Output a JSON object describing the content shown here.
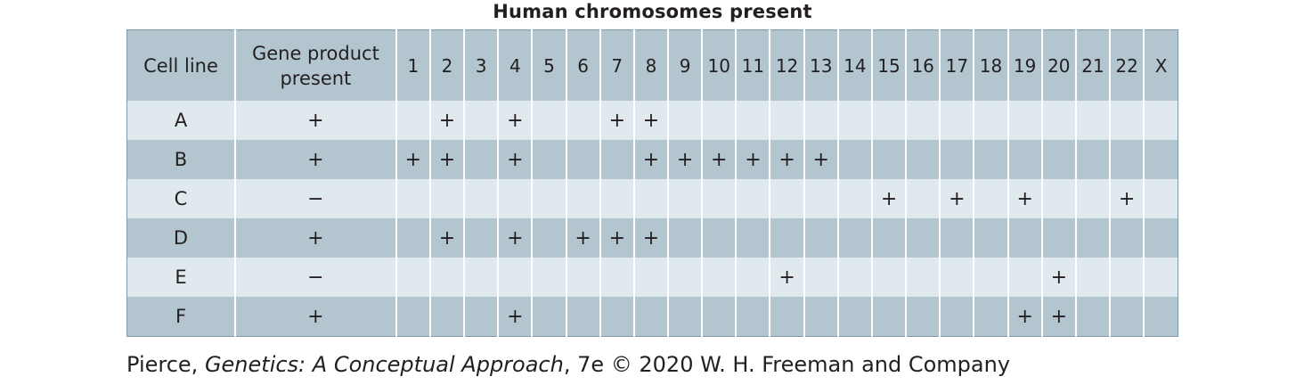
{
  "title": "Human chromosomes present",
  "table": {
    "header_cell_line": "Cell line",
    "header_gene_product": "Gene product present",
    "chromosomes": [
      "1",
      "2",
      "3",
      "4",
      "5",
      "6",
      "7",
      "8",
      "9",
      "10",
      "11",
      "12",
      "13",
      "14",
      "15",
      "16",
      "17",
      "18",
      "19",
      "20",
      "21",
      "22",
      "X"
    ],
    "rows": [
      {
        "cell_line": "A",
        "gene_product": "+",
        "marks": [
          "",
          "+",
          "",
          "+",
          "",
          "",
          "+",
          "+",
          "",
          "",
          "",
          "",
          "",
          "",
          "",
          "",
          "",
          "",
          "",
          "",
          "",
          "",
          ""
        ]
      },
      {
        "cell_line": "B",
        "gene_product": "+",
        "marks": [
          "+",
          "+",
          "",
          "+",
          "",
          "",
          "",
          "+",
          "+",
          "+",
          "+",
          "+",
          "+",
          "",
          "",
          "",
          "",
          "",
          "",
          "",
          "",
          "",
          ""
        ]
      },
      {
        "cell_line": "C",
        "gene_product": "−",
        "marks": [
          "",
          "",
          "",
          "",
          "",
          "",
          "",
          "",
          "",
          "",
          "",
          "",
          "",
          "",
          "+",
          "",
          "+",
          "",
          "+",
          "",
          "",
          "+",
          ""
        ]
      },
      {
        "cell_line": "D",
        "gene_product": "+",
        "marks": [
          "",
          "+",
          "",
          "+",
          "",
          "+",
          "+",
          "+",
          "",
          "",
          "",
          "",
          "",
          "",
          "",
          "",
          "",
          "",
          "",
          "",
          "",
          "",
          ""
        ]
      },
      {
        "cell_line": "E",
        "gene_product": "−",
        "marks": [
          "",
          "",
          "",
          "",
          "",
          "",
          "",
          "",
          "",
          "",
          "",
          "+",
          "",
          "",
          "",
          "",
          "",
          "",
          "",
          "+",
          "",
          "",
          ""
        ]
      },
      {
        "cell_line": "F",
        "gene_product": "+",
        "marks": [
          "",
          "",
          "",
          "+",
          "",
          "",
          "",
          "",
          "",
          "",
          "",
          "",
          "",
          "",
          "",
          "",
          "",
          "",
          "+",
          "+",
          "",
          "",
          ""
        ]
      }
    ]
  },
  "credit": {
    "author": "Pierce, ",
    "book": "Genetics: A Conceptual Approach",
    "rest": ", 7e © 2020 W. H. Freeman and Company"
  }
}
